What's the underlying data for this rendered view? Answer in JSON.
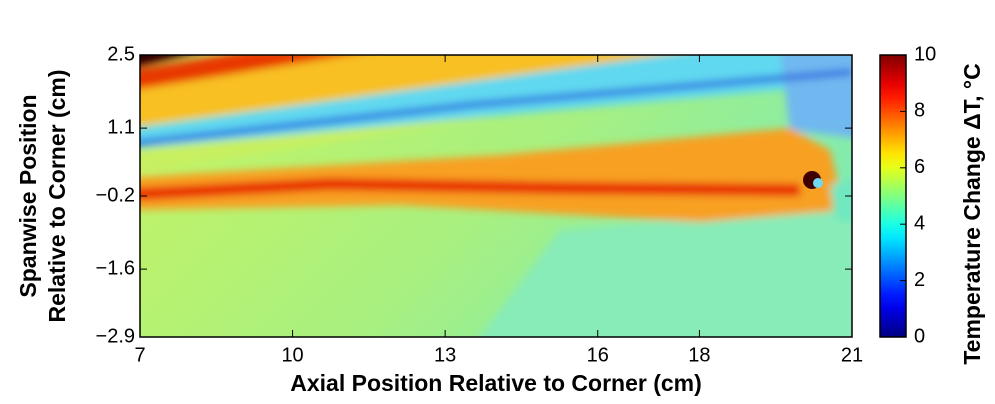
{
  "chart_data": {
    "type": "heatmap",
    "xlabel": "Axial Position Relative to Corner (cm)",
    "ylabel": [
      "Spanwise Position",
      "Relative to Corner (cm)"
    ],
    "xlim": [
      7,
      21
    ],
    "xticks": [
      7,
      10,
      13,
      16,
      18,
      21
    ],
    "ylim": [
      -2.9,
      2.5
    ],
    "yticks": [
      {
        "value": -2.9,
        "label": "−2.9"
      },
      {
        "value": -1.6,
        "label": "−1.6"
      },
      {
        "value": -0.2,
        "label": "−0.2"
      },
      1.1,
      2.5
    ],
    "colorbar": {
      "label": "Temperature Change ΔT, °C",
      "lim": [
        0,
        10
      ],
      "ticks": [
        0,
        2,
        4,
        6,
        8,
        10
      ],
      "colormap": "jet"
    }
  }
}
